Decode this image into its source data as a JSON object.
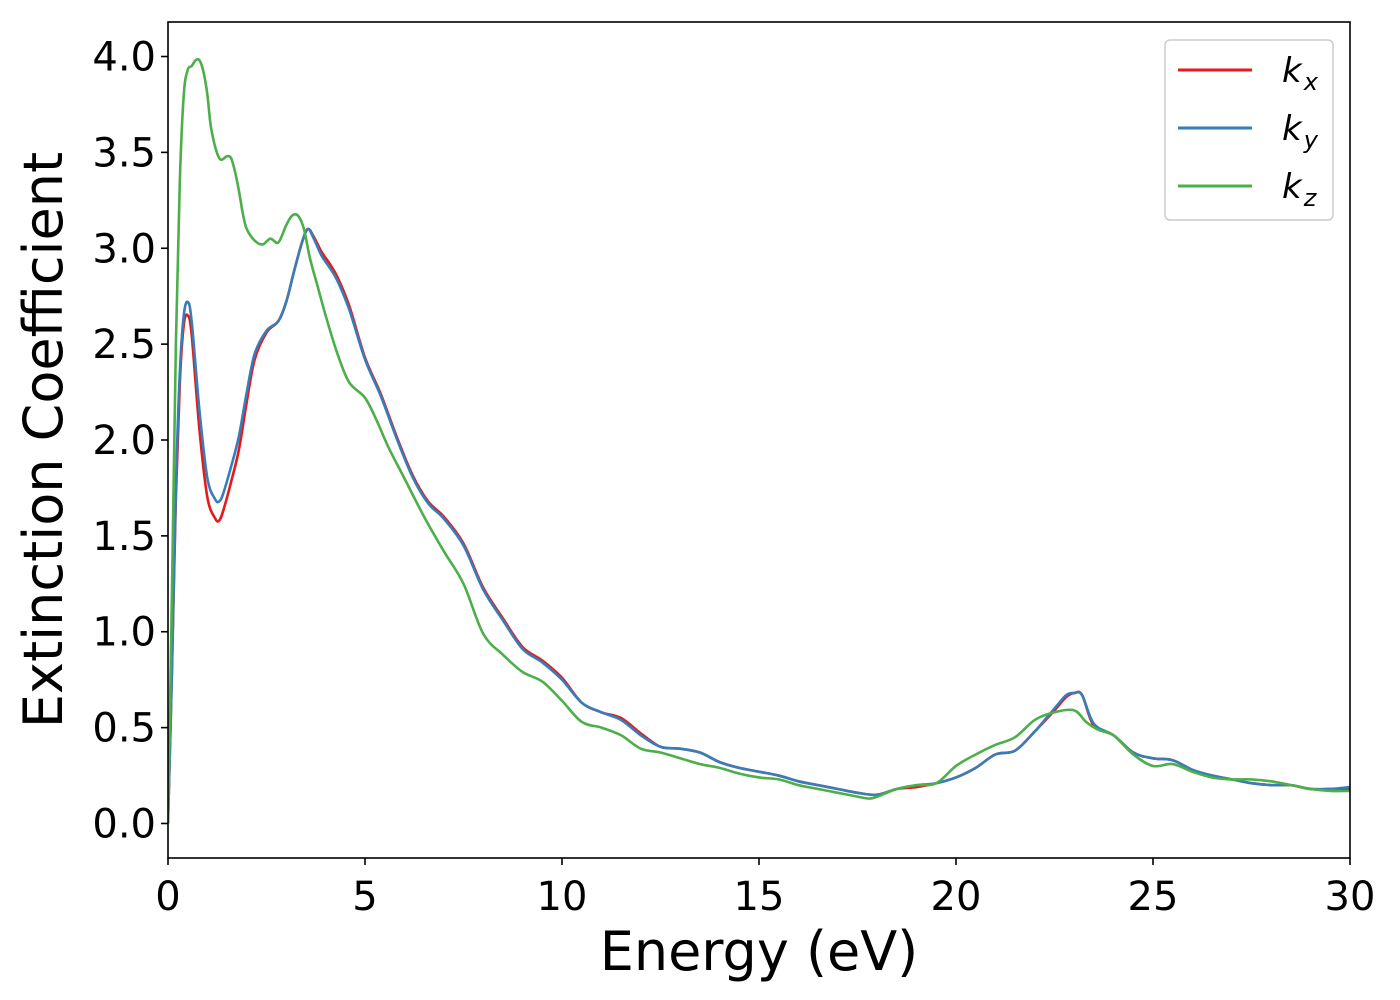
{
  "chart_data": {
    "type": "line",
    "xlabel": "Energy (eV)",
    "ylabel": "Extinction Coefficient",
    "xlim": [
      0,
      30
    ],
    "ylim": [
      -0.18,
      4.18
    ],
    "xticks": [
      0,
      5,
      10,
      15,
      20,
      25,
      30
    ],
    "xtick_labels": [
      "0",
      "5",
      "10",
      "15",
      "20",
      "25",
      "30"
    ],
    "yticks": [
      0.0,
      0.5,
      1.0,
      1.5,
      2.0,
      2.5,
      3.0,
      3.5,
      4.0
    ],
    "ytick_labels": [
      "0.0",
      "0.5",
      "1.0",
      "1.5",
      "2.0",
      "2.5",
      "3.0",
      "3.5",
      "4.0"
    ],
    "grid": false,
    "legend_position": "top-right",
    "series": [
      {
        "name": "k",
        "subscript": "x",
        "color": "#e41a1c",
        "x": [
          0,
          0.1,
          0.2,
          0.3,
          0.4,
          0.5,
          0.6,
          0.8,
          1.0,
          1.2,
          1.3,
          1.4,
          1.6,
          1.8,
          2.0,
          2.2,
          2.5,
          2.8,
          3.0,
          3.2,
          3.4,
          3.55,
          3.7,
          3.9,
          4.1,
          4.3,
          4.6,
          5.0,
          5.4,
          5.8,
          6.2,
          6.6,
          7.0,
          7.5,
          8.0,
          8.5,
          9.0,
          9.5,
          10.0,
          10.5,
          11.0,
          11.5,
          12.0,
          12.5,
          13.0,
          13.5,
          14.0,
          14.5,
          15.0,
          15.5,
          16.0,
          16.5,
          17.0,
          17.5,
          18.0,
          18.5,
          19.0,
          19.5,
          20.0,
          20.5,
          21.0,
          21.5,
          22.0,
          22.5,
          22.8,
          23.0,
          23.2,
          23.5,
          24.0,
          24.5,
          25.0,
          25.5,
          26.0,
          26.5,
          27.0,
          27.5,
          28.0,
          28.5,
          29.0,
          29.5,
          30.0
        ],
        "y": [
          0.0,
          0.8,
          1.7,
          2.3,
          2.6,
          2.65,
          2.55,
          2.05,
          1.7,
          1.59,
          1.58,
          1.63,
          1.78,
          1.95,
          2.2,
          2.42,
          2.56,
          2.62,
          2.72,
          2.88,
          3.03,
          3.1,
          3.06,
          2.98,
          2.92,
          2.85,
          2.7,
          2.43,
          2.24,
          2.02,
          1.82,
          1.68,
          1.6,
          1.46,
          1.23,
          1.07,
          0.92,
          0.85,
          0.76,
          0.63,
          0.58,
          0.55,
          0.47,
          0.4,
          0.39,
          0.37,
          0.32,
          0.29,
          0.27,
          0.25,
          0.22,
          0.2,
          0.18,
          0.16,
          0.15,
          0.18,
          0.19,
          0.21,
          0.24,
          0.29,
          0.36,
          0.38,
          0.48,
          0.59,
          0.66,
          0.68,
          0.67,
          0.51,
          0.46,
          0.37,
          0.34,
          0.33,
          0.28,
          0.25,
          0.23,
          0.21,
          0.2,
          0.2,
          0.18,
          0.18,
          0.18
        ]
      },
      {
        "name": "k",
        "subscript": "y",
        "color": "#377eb8",
        "x": [
          0,
          0.1,
          0.2,
          0.3,
          0.4,
          0.5,
          0.6,
          0.8,
          1.0,
          1.2,
          1.3,
          1.4,
          1.6,
          1.8,
          2.0,
          2.2,
          2.5,
          2.8,
          3.0,
          3.2,
          3.4,
          3.55,
          3.7,
          3.9,
          4.1,
          4.3,
          4.6,
          5.0,
          5.4,
          5.8,
          6.2,
          6.6,
          7.0,
          7.5,
          8.0,
          8.5,
          9.0,
          9.5,
          10.0,
          10.5,
          11.0,
          11.5,
          12.0,
          12.5,
          13.0,
          13.5,
          14.0,
          14.5,
          15.0,
          15.5,
          16.0,
          16.5,
          17.0,
          17.5,
          18.0,
          18.5,
          19.0,
          19.5,
          20.0,
          20.5,
          21.0,
          21.5,
          22.0,
          22.5,
          22.8,
          23.0,
          23.2,
          23.5,
          24.0,
          24.5,
          25.0,
          25.5,
          26.0,
          26.5,
          27.0,
          27.5,
          28.0,
          28.5,
          29.0,
          29.5,
          30.0
        ],
        "y": [
          0.0,
          0.8,
          1.75,
          2.35,
          2.65,
          2.72,
          2.62,
          2.15,
          1.8,
          1.69,
          1.68,
          1.72,
          1.86,
          2.02,
          2.25,
          2.45,
          2.57,
          2.62,
          2.72,
          2.88,
          3.03,
          3.1,
          3.05,
          2.96,
          2.9,
          2.83,
          2.68,
          2.42,
          2.23,
          2.01,
          1.81,
          1.67,
          1.59,
          1.45,
          1.22,
          1.06,
          0.91,
          0.84,
          0.75,
          0.63,
          0.58,
          0.54,
          0.46,
          0.4,
          0.39,
          0.37,
          0.32,
          0.29,
          0.27,
          0.25,
          0.22,
          0.2,
          0.18,
          0.16,
          0.15,
          0.18,
          0.2,
          0.21,
          0.24,
          0.29,
          0.36,
          0.38,
          0.48,
          0.6,
          0.67,
          0.68,
          0.67,
          0.52,
          0.46,
          0.37,
          0.34,
          0.33,
          0.28,
          0.25,
          0.23,
          0.21,
          0.2,
          0.2,
          0.18,
          0.18,
          0.19
        ]
      },
      {
        "name": "k",
        "subscript": "z",
        "color": "#4daf4a",
        "x": [
          0,
          0.1,
          0.2,
          0.3,
          0.4,
          0.5,
          0.6,
          0.7,
          0.8,
          0.9,
          1.0,
          1.1,
          1.3,
          1.5,
          1.6,
          1.7,
          1.8,
          1.9,
          2.0,
          2.2,
          2.4,
          2.6,
          2.8,
          3.0,
          3.15,
          3.3,
          3.45,
          3.6,
          3.8,
          4.0,
          4.3,
          4.6,
          5.0,
          5.3,
          5.6,
          6.0,
          6.5,
          7.0,
          7.5,
          8.0,
          8.5,
          9.0,
          9.5,
          10.0,
          10.5,
          11.0,
          11.5,
          12.0,
          12.5,
          13.0,
          13.5,
          14.0,
          14.5,
          15.0,
          15.5,
          16.0,
          16.5,
          17.0,
          17.5,
          17.8,
          18.0,
          18.5,
          19.0,
          19.5,
          20.0,
          20.5,
          21.0,
          21.5,
          22.0,
          22.5,
          23.0,
          23.3,
          23.6,
          24.0,
          24.5,
          25.0,
          25.5,
          26.0,
          26.5,
          27.0,
          27.5,
          28.0,
          28.5,
          29.0,
          29.5,
          30.0
        ],
        "y": [
          0.0,
          1.2,
          2.5,
          3.35,
          3.8,
          3.93,
          3.95,
          3.98,
          3.98,
          3.92,
          3.8,
          3.62,
          3.47,
          3.48,
          3.47,
          3.4,
          3.3,
          3.18,
          3.1,
          3.04,
          3.02,
          3.05,
          3.03,
          3.12,
          3.17,
          3.17,
          3.1,
          2.95,
          2.8,
          2.65,
          2.45,
          2.3,
          2.22,
          2.1,
          1.96,
          1.8,
          1.6,
          1.42,
          1.25,
          0.99,
          0.88,
          0.79,
          0.74,
          0.64,
          0.53,
          0.5,
          0.46,
          0.39,
          0.37,
          0.34,
          0.31,
          0.29,
          0.26,
          0.24,
          0.23,
          0.2,
          0.18,
          0.16,
          0.14,
          0.13,
          0.14,
          0.18,
          0.2,
          0.21,
          0.3,
          0.36,
          0.41,
          0.45,
          0.54,
          0.58,
          0.59,
          0.53,
          0.49,
          0.46,
          0.36,
          0.3,
          0.31,
          0.27,
          0.24,
          0.23,
          0.23,
          0.22,
          0.2,
          0.18,
          0.17,
          0.17
        ]
      }
    ]
  }
}
